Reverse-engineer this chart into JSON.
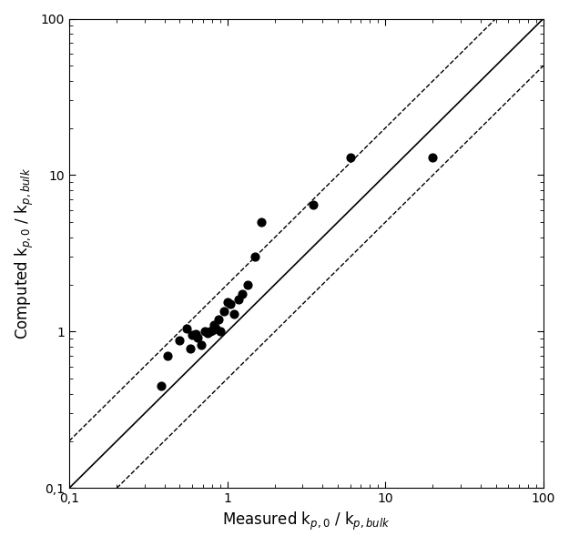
{
  "xlabel": "Measured k$_{p,0}$ / k$_{p,bulk}$",
  "ylabel": "Computed k$_{p,0}$ / k$_{p,bulk}$",
  "xlim": [
    0.1,
    100
  ],
  "ylim": [
    0.1,
    100
  ],
  "x_data": [
    0.38,
    0.42,
    0.5,
    0.55,
    0.58,
    0.6,
    0.63,
    0.65,
    0.68,
    0.72,
    0.75,
    0.78,
    0.8,
    0.82,
    0.85,
    0.88,
    0.9,
    0.95,
    1.0,
    1.05,
    1.1,
    1.18,
    1.25,
    1.35,
    1.5,
    1.65,
    3.5,
    6.0,
    20.0
  ],
  "y_data": [
    0.45,
    0.7,
    0.88,
    1.05,
    0.78,
    0.95,
    0.97,
    0.92,
    0.82,
    1.0,
    0.98,
    1.0,
    1.02,
    1.1,
    1.05,
    1.2,
    1.0,
    1.35,
    1.55,
    1.5,
    1.3,
    1.6,
    1.75,
    2.0,
    3.0,
    5.0,
    6.5,
    13.0,
    13.0
  ],
  "upper_band_factor": 2.0,
  "lower_band_factor": 0.5,
  "line_color": "#000000",
  "point_color": "#000000",
  "point_size": 40,
  "background_color": "#ffffff"
}
